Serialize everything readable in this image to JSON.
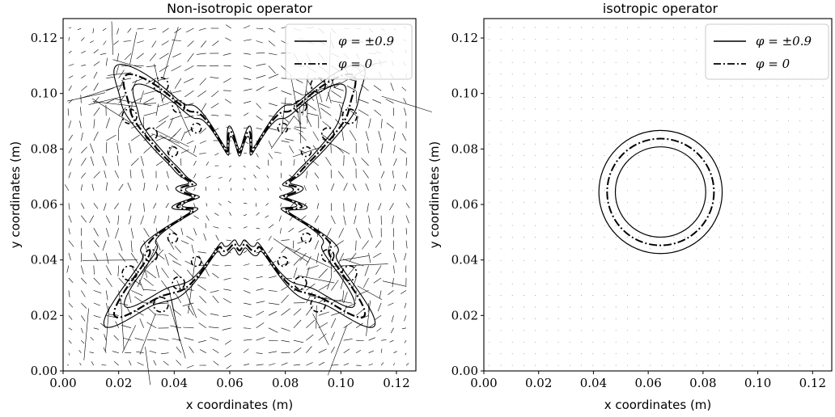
{
  "chart_data": [
    {
      "type": "contour-quiver",
      "title": "Non-isotropic operator",
      "xlabel": "x coordinates (m)",
      "ylabel": "y coordinates (m)",
      "xlim": [
        0,
        0.127
      ],
      "ylim": [
        0,
        0.127
      ],
      "xticks": [
        "0.00",
        "0.02",
        "0.04",
        "0.06",
        "0.08",
        "0.10",
        "0.12"
      ],
      "yticks": [
        "0.00",
        "0.02",
        "0.04",
        "0.06",
        "0.08",
        "0.10",
        "0.12"
      ],
      "xtick_values": [
        0,
        0.02,
        0.04,
        0.06,
        0.08,
        0.1,
        0.12
      ],
      "ytick_values": [
        0,
        0.02,
        0.04,
        0.06,
        0.08,
        0.1,
        0.12
      ],
      "legend_position": "top-right",
      "legend": [
        {
          "label": "φ = ±0.9",
          "style": "solid"
        },
        {
          "label": "φ = 0",
          "style": "dash-dot"
        }
      ],
      "center": [
        0.0635,
        0.0635
      ],
      "dendrite_arms": [
        {
          "angle_deg": 45,
          "tip": [
            0.112,
            0.115
          ]
        },
        {
          "angle_deg": 135,
          "tip": [
            0.015,
            0.112
          ]
        },
        {
          "angle_deg": 225,
          "tip": [
            0.015,
            0.015
          ]
        },
        {
          "angle_deg": 315,
          "tip": [
            0.112,
            0.015
          ]
        }
      ],
      "quiver": "velocity field (arrows)"
    },
    {
      "type": "contour-quiver",
      "title": "isotropic operator",
      "xlabel": "x coordinates (m)",
      "ylabel": "y coordinates (m)",
      "xlim": [
        0,
        0.127
      ],
      "ylim": [
        0,
        0.127
      ],
      "xticks": [
        "0.00",
        "0.02",
        "0.04",
        "0.06",
        "0.08",
        "0.10",
        "0.12"
      ],
      "yticks": [
        "0.00",
        "0.02",
        "0.04",
        "0.06",
        "0.08",
        "0.10",
        "0.12"
      ],
      "xtick_values": [
        0,
        0.02,
        0.04,
        0.06,
        0.08,
        0.1,
        0.12
      ],
      "ytick_values": [
        0,
        0.02,
        0.04,
        0.06,
        0.08,
        0.1,
        0.12
      ],
      "legend_position": "top-right",
      "legend": [
        {
          "label": "φ = ±0.9",
          "style": "solid"
        },
        {
          "label": "φ = 0",
          "style": "dash-dot"
        }
      ],
      "circles": [
        {
          "center": [
            0.0645,
            0.0645
          ],
          "radius": 0.0225,
          "level": "φ = ±0.9"
        },
        {
          "center": [
            0.0645,
            0.0645
          ],
          "radius": 0.0195,
          "level": "φ = 0"
        },
        {
          "center": [
            0.0645,
            0.0645
          ],
          "radius": 0.0165,
          "level": "φ = ±0.9"
        }
      ],
      "quiver": "near-zero velocity field (dots)"
    }
  ]
}
